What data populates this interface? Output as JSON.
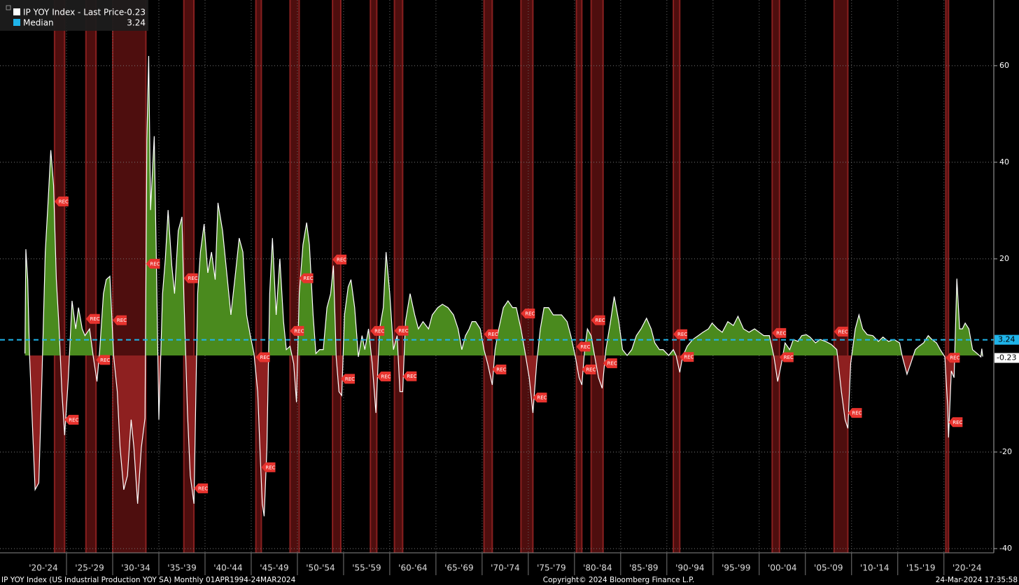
{
  "chart_data": {
    "type": "line",
    "series": [
      {
        "name": "IP YOY Index - Last Price",
        "color": "#ffffff",
        "values": [
          0.4,
          22.0,
          15.7,
          0,
          -27.8,
          -26.4,
          -7.5,
          21.4,
          31.6,
          42.5,
          35.2,
          15.7,
          5.5,
          -7.5,
          -16.5,
          -4.6,
          11.3,
          5.5,
          9.9,
          5.5,
          4.1,
          5.5,
          -0.3,
          -5.4,
          1.2,
          12.8,
          15.7,
          16.4,
          0,
          -7.5,
          -19.1,
          -27.8,
          -24.9,
          -13.3,
          -19.1,
          -30.7,
          -19.1,
          -13.0,
          44.6,
          62.0,
          30.1,
          45.4,
          22.9,
          -13.3,
          12.8,
          20.0,
          30.1,
          18.6,
          12.8,
          25.8,
          28.7,
          12.8,
          -11.9,
          -24.9,
          -30.7,
          12.8,
          21.4,
          27.2,
          17.1,
          21.4,
          15.7,
          31.6,
          25.8,
          20.0,
          8.4,
          17.1,
          24.3,
          21.4,
          8.4,
          4.1,
          0.4,
          -7.5,
          -22.0,
          -30.7,
          -33.3,
          -19.1,
          12.8,
          24.3,
          8.4,
          20.0,
          7.0,
          1.2,
          1.9,
          -1.7,
          -9.7,
          12.8,
          22.9,
          27.5,
          22.9,
          8.4,
          0.4,
          1.2,
          1.2,
          9.9,
          12.8,
          18.6,
          -0.3,
          -7.5,
          -8.3,
          8.4,
          14.2,
          15.7,
          9.9,
          -0.3,
          4.1,
          1.2,
          5.5,
          -1.7,
          -11.9,
          5.5,
          9.9,
          21.4,
          12.8,
          1.2,
          4.1,
          -7.5,
          -7.5,
          7.0,
          12.8,
          8.4,
          5.5,
          7.0,
          5.5,
          8.4,
          9.9,
          10.6,
          9.9,
          8.4,
          5.5,
          1.2,
          4.1,
          5.5,
          7.0,
          7.0,
          5.5,
          1.2,
          -1.7,
          -6.1,
          1.2,
          5.5,
          9.9,
          11.3,
          9.9,
          9.9,
          5.5,
          1.2,
          -4.6,
          -11.9,
          -1.7,
          5.5,
          9.9,
          9.9,
          8.4,
          8.4,
          8.4,
          7.0,
          4.1,
          -0.3,
          -4.6,
          -6.1,
          1.2,
          5.5,
          4.1,
          -0.3,
          -4.6,
          -6.8,
          1.2,
          7.0,
          12.2,
          7.0,
          1.2,
          0,
          1.2,
          4.1,
          5.5,
          7.7,
          5.5,
          2.6,
          1.2,
          1.2,
          0,
          1.2,
          0,
          -3.5,
          -0.3,
          1.9,
          3.3,
          4.1,
          4.8,
          5.5,
          6.7,
          5.5,
          4.8,
          7.0,
          6.2,
          8.1,
          5.5,
          4.8,
          5.5,
          4.8,
          4.1,
          4.1,
          -0.3,
          -5.4,
          -1.7,
          2.6,
          1.2,
          3.3,
          2.9,
          4.1,
          4.3,
          3.8,
          2.6,
          3.3,
          2.9,
          2.3,
          1.2,
          -7.5,
          -13.3,
          -15.1,
          -1.7,
          5.5,
          8.4,
          5.5,
          4.3,
          4.1,
          2.9,
          3.8,
          2.9,
          3.3,
          2.6,
          -0.3,
          -3.9,
          -1.7,
          1.2,
          1.9,
          2.6,
          4.1,
          3.3,
          2.6,
          1.2,
          -0.3,
          -10.4,
          -17.0,
          -3.2,
          -4.6,
          15.9,
          5.5,
          5.5,
          6.7,
          5.5,
          1.2,
          0.4,
          -0.3,
          1.4,
          -0.23
        ]
      }
    ],
    "x": [
      1920.5,
      1920.6,
      1920.8,
      1921.0,
      1921.6,
      1922.0,
      1922.3,
      1922.7,
      1923.0,
      1923.3,
      1923.6,
      1923.9,
      1924.2,
      1924.5,
      1924.8,
      1925.2,
      1925.6,
      1926.0,
      1926.3,
      1926.7,
      1927.0,
      1927.5,
      1927.9,
      1928.3,
      1928.6,
      1929.0,
      1929.3,
      1929.7,
      1930.1,
      1930.5,
      1930.8,
      1931.2,
      1931.6,
      1932.0,
      1932.3,
      1932.7,
      1933.1,
      1933.5,
      1933.7,
      1933.9,
      1934.1,
      1934.5,
      1934.7,
      1935.0,
      1935.4,
      1935.7,
      1936.0,
      1936.4,
      1936.7,
      1937.1,
      1937.5,
      1937.7,
      1938.1,
      1938.4,
      1938.8,
      1939.2,
      1939.5,
      1939.9,
      1940.3,
      1940.7,
      1941.1,
      1941.4,
      1941.9,
      1942.2,
      1942.8,
      1943.3,
      1943.7,
      1944.1,
      1944.5,
      1944.9,
      1945.3,
      1945.7,
      1946.0,
      1946.2,
      1946.4,
      1946.7,
      1947.0,
      1947.3,
      1947.7,
      1948.1,
      1948.5,
      1948.8,
      1949.2,
      1949.6,
      1949.9,
      1950.2,
      1950.6,
      1951.0,
      1951.3,
      1951.7,
      1952.0,
      1952.4,
      1952.8,
      1953.2,
      1953.6,
      1953.9,
      1954.2,
      1954.5,
      1954.8,
      1955.1,
      1955.5,
      1955.8,
      1956.2,
      1956.6,
      1957.0,
      1957.3,
      1957.7,
      1958.1,
      1958.5,
      1958.9,
      1959.3,
      1959.6,
      1960.0,
      1960.4,
      1960.8,
      1961.1,
      1961.4,
      1961.7,
      1962.2,
      1962.7,
      1963.1,
      1963.6,
      1964.2,
      1964.6,
      1965.2,
      1965.7,
      1966.3,
      1966.9,
      1967.4,
      1967.8,
      1968.2,
      1968.6,
      1968.9,
      1969.3,
      1969.8,
      1970.2,
      1970.6,
      1971.1,
      1971.4,
      1971.8,
      1972.3,
      1972.8,
      1973.3,
      1973.7,
      1974.2,
      1974.6,
      1975.1,
      1975.5,
      1975.9,
      1976.3,
      1976.7,
      1977.2,
      1977.7,
      1978.1,
      1978.6,
      1979.2,
      1979.6,
      1980.1,
      1980.5,
      1980.8,
      1981.1,
      1981.4,
      1981.8,
      1982.2,
      1982.6,
      1983.0,
      1983.4,
      1983.9,
      1984.3,
      1984.8,
      1985.2,
      1985.7,
      1986.2,
      1986.7,
      1987.2,
      1987.8,
      1988.3,
      1988.7,
      1989.2,
      1989.6,
      1990.2,
      1990.7,
      1991.0,
      1991.4,
      1991.7,
      1992.2,
      1992.8,
      1993.4,
      1993.9,
      1994.5,
      1994.9,
      1995.5,
      1996.0,
      1996.6,
      1997.2,
      1997.7,
      1998.3,
      1998.9,
      1999.5,
      2000.0,
      2000.5,
      2001.1,
      2001.6,
      2002.0,
      2002.4,
      2002.8,
      2003.3,
      2003.7,
      2004.2,
      2004.6,
      2005.1,
      2005.5,
      2006.1,
      2006.6,
      2007.2,
      2007.8,
      2008.4,
      2008.9,
      2009.3,
      2009.6,
      2009.9,
      2010.4,
      2010.8,
      2011.2,
      2011.7,
      2012.3,
      2012.9,
      2013.4,
      2014.0,
      2014.6,
      2015.2,
      2015.5,
      2016.0,
      2016.4,
      2016.9,
      2017.3,
      2017.8,
      2018.3,
      2018.7,
      2019.2,
      2019.6,
      2020.1,
      2020.4,
      2020.5,
      2020.8,
      2021.1,
      2021.4,
      2021.7,
      2022.0,
      2022.3,
      2022.7,
      2023.1,
      2023.6,
      2024.0,
      2024.1,
      2024.2
    ],
    "positive_color": "#4a8a1e",
    "negative_color": "#8e2020",
    "median": {
      "name": "Median",
      "value": 3.24,
      "color": "#1fb4ea"
    },
    "recession_label": "REC",
    "recession_color": "#8e1a1a",
    "recessions": [
      [
        1923.7,
        1924.8
      ],
      [
        1927.1,
        1928.2
      ],
      [
        1930.0,
        1933.6
      ],
      [
        1937.7,
        1938.8
      ],
      [
        1945.5,
        1946.1
      ],
      [
        1949.2,
        1950.2
      ],
      [
        1953.8,
        1954.7
      ],
      [
        1957.9,
        1958.6
      ],
      [
        1960.5,
        1961.4
      ],
      [
        1970.2,
        1971.1
      ],
      [
        1974.2,
        1975.5
      ],
      [
        1980.2,
        1980.8
      ],
      [
        1981.8,
        1983.1
      ],
      [
        1990.7,
        1991.4
      ],
      [
        2001.4,
        2002.2
      ],
      [
        2008.1,
        2009.6
      ],
      [
        2020.2,
        2020.5
      ]
    ],
    "xlim": [
      1917.8,
      2025.4
    ],
    "xticks": [
      {
        "value": 1922.5,
        "label": "'20-'24"
      },
      {
        "value": 1927.5,
        "label": "'25-'29"
      },
      {
        "value": 1932.5,
        "label": "'30-'34"
      },
      {
        "value": 1937.5,
        "label": "'35-'39"
      },
      {
        "value": 1942.5,
        "label": "'40-'44"
      },
      {
        "value": 1947.5,
        "label": "'45-'49"
      },
      {
        "value": 1952.5,
        "label": "'50-'54"
      },
      {
        "value": 1957.5,
        "label": "'55-'59"
      },
      {
        "value": 1962.5,
        "label": "'60-'64"
      },
      {
        "value": 1967.5,
        "label": "'65-'69"
      },
      {
        "value": 1972.5,
        "label": "'70-'74"
      },
      {
        "value": 1977.5,
        "label": "'75-'79"
      },
      {
        "value": 1982.5,
        "label": "'80-'84"
      },
      {
        "value": 1987.5,
        "label": "'85-'89"
      },
      {
        "value": 1992.5,
        "label": "'90-'94"
      },
      {
        "value": 1997.5,
        "label": "'95-'99"
      },
      {
        "value": 2002.5,
        "label": "'00-'04"
      },
      {
        "value": 2007.5,
        "label": "'05-'09"
      },
      {
        "value": 2012.5,
        "label": "'10-'14"
      },
      {
        "value": 2017.5,
        "label": "'15-'19"
      },
      {
        "value": 2022.5,
        "label": "'20-'24"
      }
    ],
    "ylim": [
      -40,
      73.6
    ],
    "yticks": [
      -40,
      -20,
      20,
      40,
      60
    ],
    "grid": true,
    "footer": {
      "left": "IP YOY Index (US Industrial Production YOY SA)  Monthly 01APR1994-24MAR2024",
      "center": "Copyright© 2024 Bloomberg Finance L.P.",
      "right": "24-Mar-2024 17:35:58"
    }
  }
}
